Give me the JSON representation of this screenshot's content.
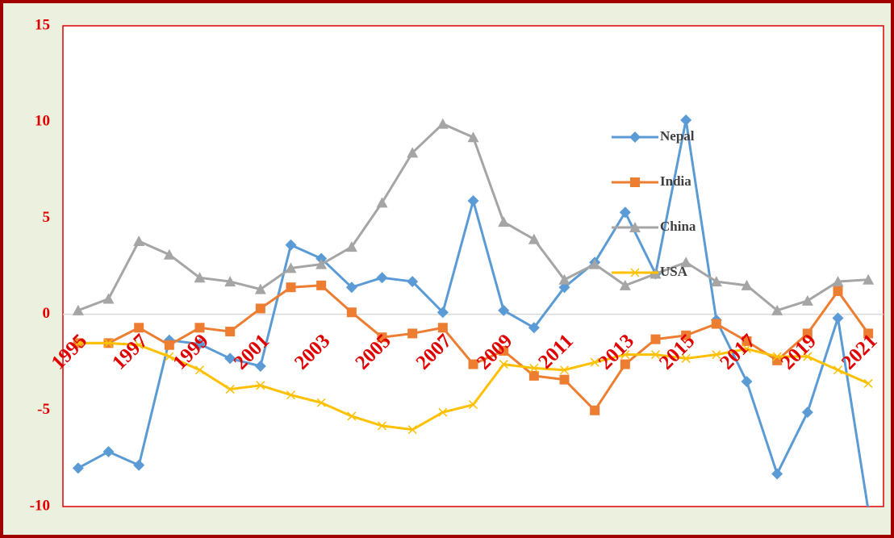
{
  "chart_data": {
    "type": "line",
    "categories": [
      "1995",
      null,
      "1997",
      null,
      "1999",
      null,
      "2001",
      null,
      "2003",
      null,
      "2005",
      null,
      "2007",
      null,
      "2009",
      null,
      "2011",
      null,
      "2013",
      null,
      "2015",
      null,
      "2017",
      null,
      "2019",
      null,
      "2021"
    ],
    "series": [
      {
        "name": "Nepal",
        "color": "#5b9bd5",
        "marker": "diamond",
        "values": [
          -8.0,
          -7.15,
          -7.85,
          -1.35,
          -1.55,
          -2.3,
          -2.7,
          3.6,
          2.9,
          1.4,
          1.9,
          1.7,
          0.1,
          5.9,
          0.2,
          -0.7,
          1.4,
          2.7,
          5.3,
          2.1,
          10.1,
          -0.3,
          -3.5,
          -8.3,
          -5.1,
          -0.2,
          -10.2
        ]
      },
      {
        "name": "India",
        "color": "#ed7d31",
        "marker": "square",
        "values": [
          -1.5,
          -1.5,
          -0.7,
          -1.6,
          -0.7,
          -0.9,
          0.3,
          1.4,
          1.5,
          0.1,
          -1.2,
          -1.0,
          -0.7,
          -2.6,
          -1.9,
          -3.2,
          -3.4,
          -5.0,
          -2.6,
          -1.3,
          -1.1,
          -0.5,
          -1.4,
          -2.4,
          -1.0,
          1.2,
          -1.0
        ]
      },
      {
        "name": "China",
        "color": "#a5a5a5",
        "marker": "triangle",
        "values": [
          0.2,
          0.8,
          3.8,
          3.1,
          1.9,
          1.7,
          1.3,
          2.4,
          2.6,
          3.5,
          5.8,
          8.4,
          9.9,
          9.2,
          4.8,
          3.9,
          1.8,
          2.6,
          1.5,
          2.1,
          2.7,
          1.7,
          1.5,
          0.2,
          0.7,
          1.7,
          1.8
        ]
      },
      {
        "name": "USA",
        "color": "#ffc000",
        "marker": "x",
        "values": [
          -1.5,
          -1.5,
          -1.6,
          -2.2,
          -2.9,
          -3.9,
          -3.7,
          -4.2,
          -4.6,
          -5.3,
          -5.8,
          -6.0,
          -5.1,
          -4.7,
          -2.6,
          -2.8,
          -2.9,
          -2.5,
          -2.1,
          -2.1,
          -2.3,
          -2.1,
          -1.8,
          -2.2,
          -2.2,
          -2.9,
          -3.6
        ]
      }
    ],
    "ylim": [
      -10,
      15
    ],
    "yticks": [
      -10,
      -5,
      0,
      5,
      10,
      15
    ],
    "grid": false,
    "legend": "right"
  }
}
